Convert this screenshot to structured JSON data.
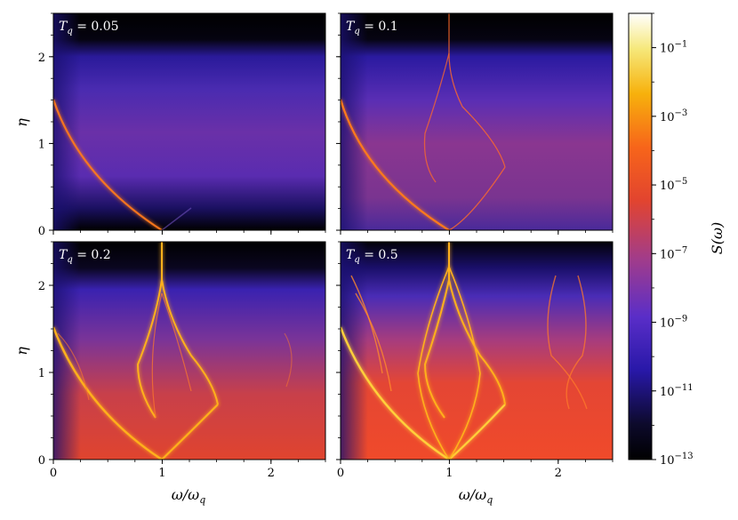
{
  "chart_data": {
    "type": "heatmap",
    "xlabel_tex": "ω/ω",
    "xlabel_sub": "q",
    "ylabel": "η",
    "xlim": [
      0,
      2.5
    ],
    "ylim": [
      0,
      2.5
    ],
    "x_ticks": [
      "0",
      "1",
      "2"
    ],
    "y_ticks": [
      "0",
      "1",
      "2"
    ],
    "panels": [
      {
        "label_main": "T",
        "label_sub": "q",
        "label_value": " = 0.05",
        "background_level": 0.28,
        "bright_band_level": 0.15
      },
      {
        "label_main": "T",
        "label_sub": "q",
        "label_value": " = 0.1",
        "background_level": 0.45,
        "bright_band_level": 0.3
      },
      {
        "label_main": "T",
        "label_sub": "q",
        "label_value": " = 0.2",
        "background_level": 0.55,
        "bright_band_level": 0.5
      },
      {
        "label_main": "T",
        "label_sub": "q",
        "label_value": " = 0.5",
        "background_level": 0.62,
        "bright_band_level": 0.7
      }
    ],
    "colorbar": {
      "label": "S(ω)",
      "scale": "log",
      "range": [
        "1e-13",
        "1"
      ],
      "tick_labels": [
        "10",
        "10",
        "10",
        "10",
        "10",
        "10",
        "10"
      ],
      "tick_exponents": [
        "−13",
        "−11",
        "−9",
        "−7",
        "−5",
        "−3",
        "−1"
      ]
    }
  }
}
